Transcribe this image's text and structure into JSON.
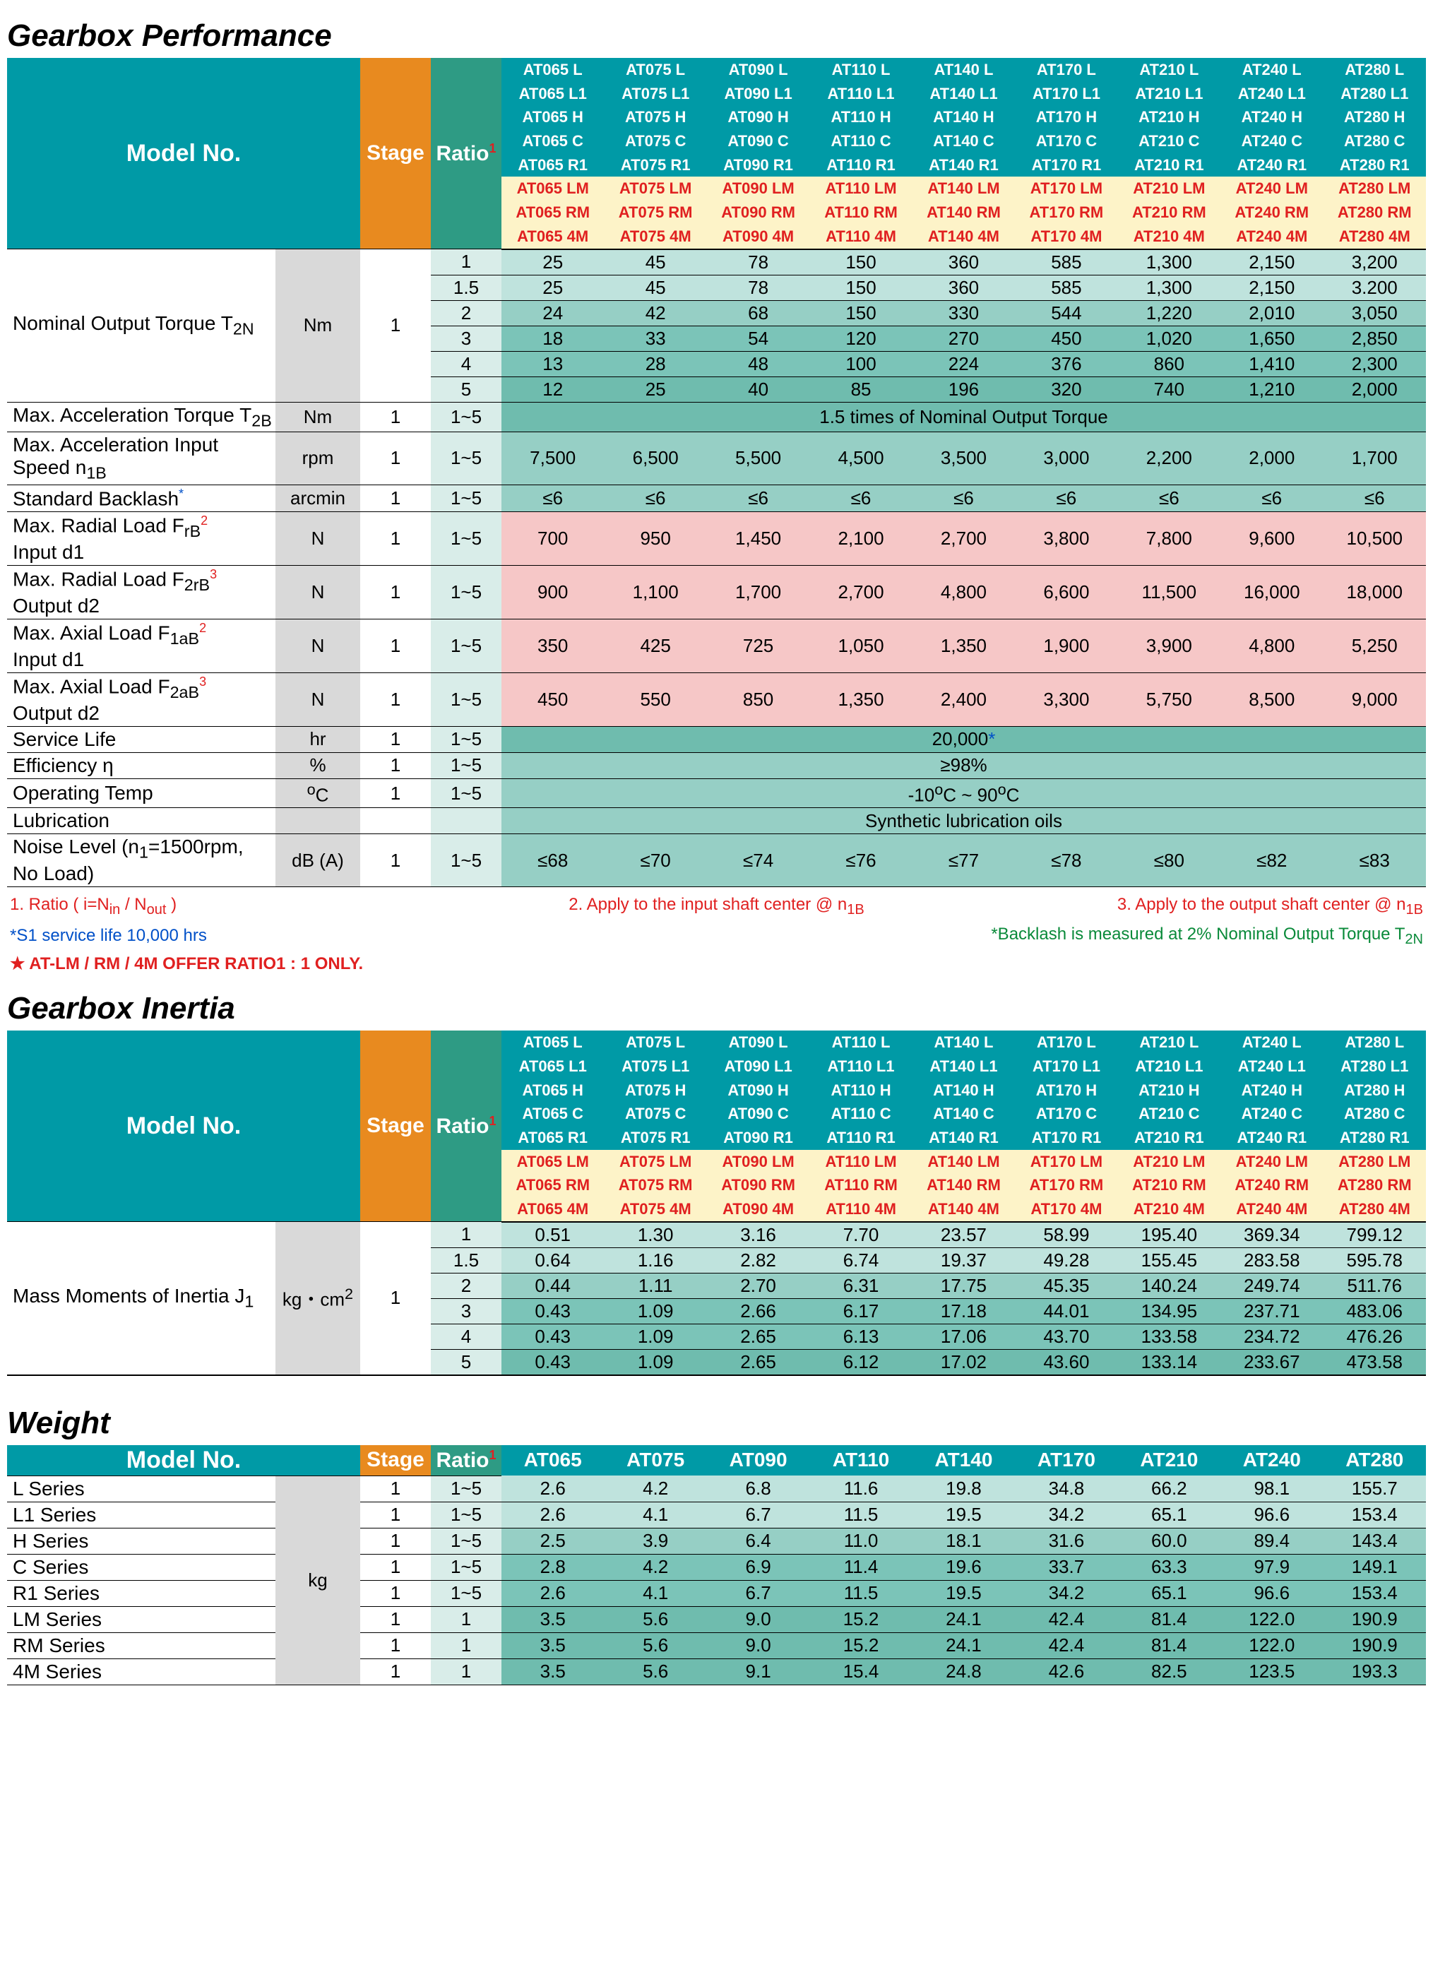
{
  "titles": {
    "performance": "Gearbox Performance",
    "inertia": "Gearbox Inertia",
    "weight": "Weight"
  },
  "headers": {
    "modelNo": "Model No.",
    "stage": "Stage",
    "ratio": "Ratio",
    "ratioSup": "1"
  },
  "modelSizes": [
    "AT065",
    "AT075",
    "AT090",
    "AT110",
    "AT140",
    "AT170",
    "AT210",
    "AT240",
    "AT280"
  ],
  "modelSuffixesWhite": [
    "L",
    "L1",
    "H",
    "C",
    "R1"
  ],
  "modelSuffixesRed": [
    "LM",
    "RM",
    "4M"
  ],
  "perf": {
    "rows": [
      {
        "label": "Nominal  Output  Torque  T<sub>2N</sub>",
        "unit": "Nm",
        "stage": "1",
        "ratios": [
          "1",
          "1.5",
          "2",
          "3",
          "4",
          "5"
        ],
        "shade": [
          "lt",
          "lt",
          "md1",
          "md2",
          "md2",
          "dk"
        ],
        "data": [
          [
            "25",
            "45",
            "78",
            "150",
            "360",
            "585",
            "1,300",
            "2,150",
            "3,200"
          ],
          [
            "25",
            "45",
            "78",
            "150",
            "360",
            "585",
            "1,300",
            "2,150",
            "3.200"
          ],
          [
            "24",
            "42",
            "68",
            "150",
            "330",
            "544",
            "1,220",
            "2,010",
            "3,050"
          ],
          [
            "18",
            "33",
            "54",
            "120",
            "270",
            "450",
            "1,020",
            "1,650",
            "2,850"
          ],
          [
            "13",
            "28",
            "48",
            "100",
            "224",
            "376",
            "860",
            "1,410",
            "2,300"
          ],
          [
            "12",
            "25",
            "40",
            "85",
            "196",
            "320",
            "740",
            "1,210",
            "2,000"
          ]
        ]
      },
      {
        "label": "Max. Acceleration Torque T<sub>2B</sub>",
        "unit": "Nm",
        "stage": "1",
        "ratio": "1~5",
        "span": "1.5 times of Nominal Output Torque",
        "spanClass": "data-span"
      },
      {
        "label": "Max. Acceleration Input Speed n<sub>1B</sub>",
        "unit": "rpm",
        "stage": "1",
        "ratio": "1~5",
        "class": "data-md1",
        "data": [
          "7,500",
          "6,500",
          "5,500",
          "4,500",
          "3,500",
          "3,000",
          "2,200",
          "2,000",
          "1,700"
        ]
      },
      {
        "label": "Standard  Backlash<span class='sup-blue'>*</span>",
        "unit": "arcmin",
        "stage": "1",
        "ratio": "1~5",
        "class": "data-md1",
        "data": [
          "≤6",
          "≤6",
          "≤6",
          "≤6",
          "≤6",
          "≤6",
          "≤6",
          "≤6",
          "≤6"
        ]
      },
      {
        "label": "Max.  Radial  Load  F<sub>rB</sub><span class='sup'>2</span><br>Input  d1",
        "unit": "N",
        "stage": "1",
        "ratio": "1~5",
        "class": "data-pink",
        "data": [
          "700",
          "950",
          "1,450",
          "2,100",
          "2,700",
          "3,800",
          "7,800",
          "9,600",
          "10,500"
        ]
      },
      {
        "label": "Max.  Radial  Load  F<sub>2rB</sub><span class='sup'>3</span><br>Output  d2",
        "unit": "N",
        "stage": "1",
        "ratio": "1~5",
        "class": "data-pink",
        "data": [
          "900",
          "1,100",
          "1,700",
          "2,700",
          "4,800",
          "6,600",
          "11,500",
          "16,000",
          "18,000"
        ]
      },
      {
        "label": "Max.  Axial  Load  F<sub>1aB</sub><span class='sup'>2</span><br>Input  d1",
        "unit": "N",
        "stage": "1",
        "ratio": "1~5",
        "class": "data-pink",
        "data": [
          "350",
          "425",
          "725",
          "1,050",
          "1,350",
          "1,900",
          "3,900",
          "4,800",
          "5,250"
        ]
      },
      {
        "label": "Max.  Axial  Load  F<sub>2aB</sub><span class='sup'>3</span><br>Output  d2",
        "unit": "N",
        "stage": "1",
        "ratio": "1~5",
        "class": "data-pink",
        "data": [
          "450",
          "550",
          "850",
          "1,350",
          "2,400",
          "3,300",
          "5,750",
          "8,500",
          "9,000"
        ]
      },
      {
        "label": "Service  Life",
        "unit": "hr",
        "stage": "1",
        "ratio": "1~5",
        "span": "20,000<span style='color:#0050c8'>*</span>",
        "spanClass": "data-span"
      },
      {
        "label": "Efficiency  η",
        "unit": "%",
        "stage": "1",
        "ratio": "1~5",
        "span": "≥98%",
        "spanClass": "data-md1"
      },
      {
        "label": "Operating  Temp",
        "unit": "<sup>o</sup>C",
        "stage": "1",
        "ratio": "1~5",
        "span": "-10<sup>o</sup>C ~ 90<sup>o</sup>C",
        "spanClass": "data-md1"
      },
      {
        "label": "Lubrication",
        "unit": "",
        "stage": "",
        "ratio": "",
        "span": "Synthetic lubrication oils",
        "spanClass": "data-md1",
        "noRatio": true
      },
      {
        "label": "Noise Level (n<sub>1</sub>=1500rpm, No Load)",
        "unit": "dB (A)",
        "stage": "1",
        "ratio": "1~5",
        "class": "data-md1",
        "data": [
          "≤68",
          "≤70",
          "≤74",
          "≤76",
          "≤77",
          "≤78",
          "≤80",
          "≤82",
          "≤83"
        ]
      }
    ]
  },
  "footnotes": {
    "r1": "1. Ratio ( i=N<sub>in</sub> /  N<sub>out</sub> )",
    "r2": "2. Apply to the input shaft center @ n<sub>1B</sub>",
    "r3": "3. Apply to the output shaft center @ n<sub>1B</sub>",
    "b1": "*S1 service life 10,000 hrs",
    "b2": "*Backlash is measured at 2% Nominal Output Torque T<sub>2N</sub>",
    "star": "★ AT-LM / RM / 4M OFFER RATIO1 : 1 ONLY."
  },
  "inertia": {
    "label": "Mass Moments of Inertia J<sub>1</sub>",
    "unit": "kg・cm<sup>2</sup>",
    "stage": "1",
    "ratios": [
      "1",
      "1.5",
      "2",
      "3",
      "4",
      "5"
    ],
    "shade": [
      "lt",
      "lt",
      "md1",
      "md2",
      "md2",
      "dk"
    ],
    "data": [
      [
        "0.51",
        "1.30",
        "3.16",
        "7.70",
        "23.57",
        "58.99",
        "195.40",
        "369.34",
        "799.12"
      ],
      [
        "0.64",
        "1.16",
        "2.82",
        "6.74",
        "19.37",
        "49.28",
        "155.45",
        "283.58",
        "595.78"
      ],
      [
        "0.44",
        "1.11",
        "2.70",
        "6.31",
        "17.75",
        "45.35",
        "140.24",
        "249.74",
        "511.76"
      ],
      [
        "0.43",
        "1.09",
        "2.66",
        "6.17",
        "17.18",
        "44.01",
        "134.95",
        "237.71",
        "483.06"
      ],
      [
        "0.43",
        "1.09",
        "2.65",
        "6.13",
        "17.06",
        "43.70",
        "133.58",
        "234.72",
        "476.26"
      ],
      [
        "0.43",
        "1.09",
        "2.65",
        "6.12",
        "17.02",
        "43.60",
        "133.14",
        "233.67",
        "473.58"
      ]
    ]
  },
  "weight": {
    "headerModels": [
      "AT065",
      "AT075",
      "AT090",
      "AT110",
      "AT140",
      "AT170",
      "AT210",
      "AT240",
      "AT280"
    ],
    "unit": "kg",
    "rows": [
      {
        "label": "L  Series",
        "stage": "1",
        "ratio": "1~5",
        "class": "data-lt",
        "data": [
          "2.6",
          "4.2",
          "6.8",
          "11.6",
          "19.8",
          "34.8",
          "66.2",
          "98.1",
          "155.7"
        ]
      },
      {
        "label": "L1  Series",
        "stage": "1",
        "ratio": "1~5",
        "class": "data-lt",
        "data": [
          "2.6",
          "4.1",
          "6.7",
          "11.5",
          "19.5",
          "34.2",
          "65.1",
          "96.6",
          "153.4"
        ]
      },
      {
        "label": "H  Series",
        "stage": "1",
        "ratio": "1~5",
        "class": "data-md1",
        "data": [
          "2.5",
          "3.9",
          "6.4",
          "11.0",
          "18.1",
          "31.6",
          "60.0",
          "89.4",
          "143.4"
        ]
      },
      {
        "label": "C  Series",
        "stage": "1",
        "ratio": "1~5",
        "class": "data-md2",
        "data": [
          "2.8",
          "4.2",
          "6.9",
          "11.4",
          "19.6",
          "33.7",
          "63.3",
          "97.9",
          "149.1"
        ]
      },
      {
        "label": "R1  Series",
        "stage": "1",
        "ratio": "1~5",
        "class": "data-md2",
        "data": [
          "2.6",
          "4.1",
          "6.7",
          "11.5",
          "19.5",
          "34.2",
          "65.1",
          "96.6",
          "153.4"
        ]
      },
      {
        "label": "LM  Series",
        "stage": "1",
        "ratio": "1",
        "class": "data-dk",
        "data": [
          "3.5",
          "5.6",
          "9.0",
          "15.2",
          "24.1",
          "42.4",
          "81.4",
          "122.0",
          "190.9"
        ]
      },
      {
        "label": "RM  Series",
        "stage": "1",
        "ratio": "1",
        "class": "data-dk",
        "data": [
          "3.5",
          "5.6",
          "9.0",
          "15.2",
          "24.1",
          "42.4",
          "81.4",
          "122.0",
          "190.9"
        ]
      },
      {
        "label": "4M  Series",
        "stage": "1",
        "ratio": "1",
        "class": "data-dk",
        "data": [
          "3.5",
          "5.6",
          "9.1",
          "15.4",
          "24.8",
          "42.6",
          "82.5",
          "123.5",
          "193.3"
        ]
      }
    ]
  }
}
